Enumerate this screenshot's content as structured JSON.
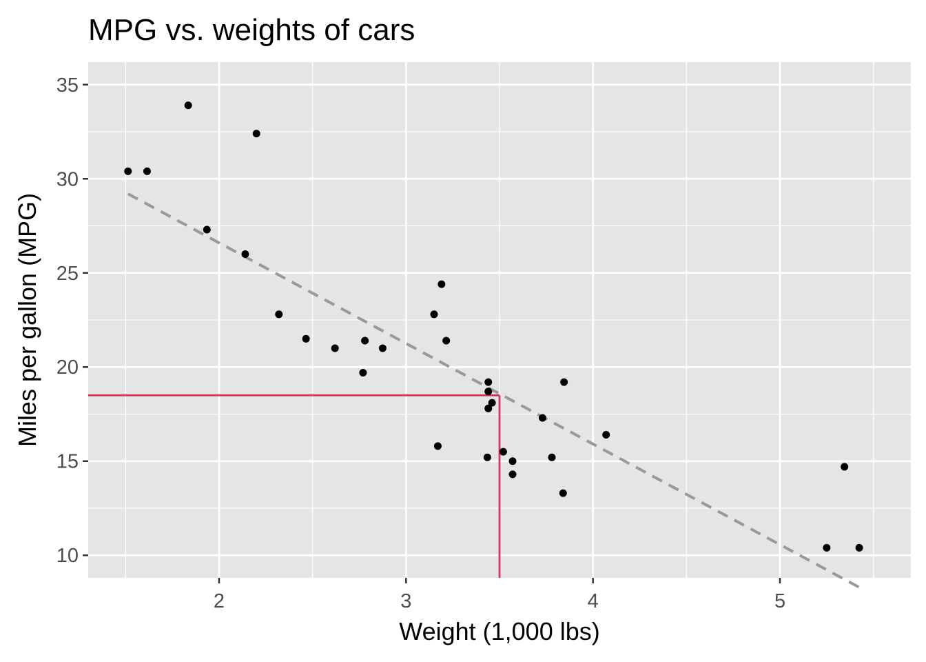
{
  "chart_data": {
    "type": "scatter",
    "title": "MPG vs. weights of cars",
    "xlabel": "Weight (1,000 lbs)",
    "ylabel": "Miles per gallon (MPG)",
    "xlim": [
      1.3,
      5.7
    ],
    "ylim": [
      8.8,
      36.2
    ],
    "x_ticks": [
      2,
      3,
      4,
      5
    ],
    "x_minor": [
      1.5,
      2.5,
      3.5,
      4.5,
      5.5
    ],
    "y_ticks": [
      10,
      15,
      20,
      25,
      30,
      35
    ],
    "y_minor": [
      12.5,
      17.5,
      22.5,
      27.5,
      32.5
    ],
    "grid": true,
    "points": [
      {
        "x": 2.62,
        "y": 21.0
      },
      {
        "x": 2.875,
        "y": 21.0
      },
      {
        "x": 2.32,
        "y": 22.8
      },
      {
        "x": 3.215,
        "y": 21.4
      },
      {
        "x": 3.44,
        "y": 18.7
      },
      {
        "x": 3.46,
        "y": 18.1
      },
      {
        "x": 3.57,
        "y": 14.3
      },
      {
        "x": 3.19,
        "y": 24.4
      },
      {
        "x": 3.15,
        "y": 22.8
      },
      {
        "x": 3.44,
        "y": 19.2
      },
      {
        "x": 3.44,
        "y": 17.8
      },
      {
        "x": 4.07,
        "y": 16.4
      },
      {
        "x": 3.73,
        "y": 17.3
      },
      {
        "x": 3.78,
        "y": 15.2
      },
      {
        "x": 5.25,
        "y": 10.4
      },
      {
        "x": 5.424,
        "y": 10.4
      },
      {
        "x": 5.345,
        "y": 14.7
      },
      {
        "x": 2.2,
        "y": 32.4
      },
      {
        "x": 1.615,
        "y": 30.4
      },
      {
        "x": 1.835,
        "y": 33.9
      },
      {
        "x": 2.465,
        "y": 21.5
      },
      {
        "x": 3.52,
        "y": 15.5
      },
      {
        "x": 3.435,
        "y": 15.2
      },
      {
        "x": 3.84,
        "y": 13.3
      },
      {
        "x": 3.845,
        "y": 19.2
      },
      {
        "x": 1.935,
        "y": 27.3
      },
      {
        "x": 2.14,
        "y": 26.0
      },
      {
        "x": 1.513,
        "y": 30.4
      },
      {
        "x": 3.17,
        "y": 15.8
      },
      {
        "x": 2.77,
        "y": 19.7
      },
      {
        "x": 3.57,
        "y": 15.0
      },
      {
        "x": 2.78,
        "y": 21.4
      }
    ],
    "trend_line": {
      "style": "dashed",
      "color": "#999999",
      "x": [
        1.513,
        5.424
      ],
      "y": [
        29.2,
        8.3
      ]
    },
    "reference_lines": {
      "color": "#d6365e",
      "x": 3.5,
      "y": 18.5
    },
    "point_color": "#000000",
    "panel_background": "#e5e5e5",
    "grid_color": "#ffffff"
  }
}
